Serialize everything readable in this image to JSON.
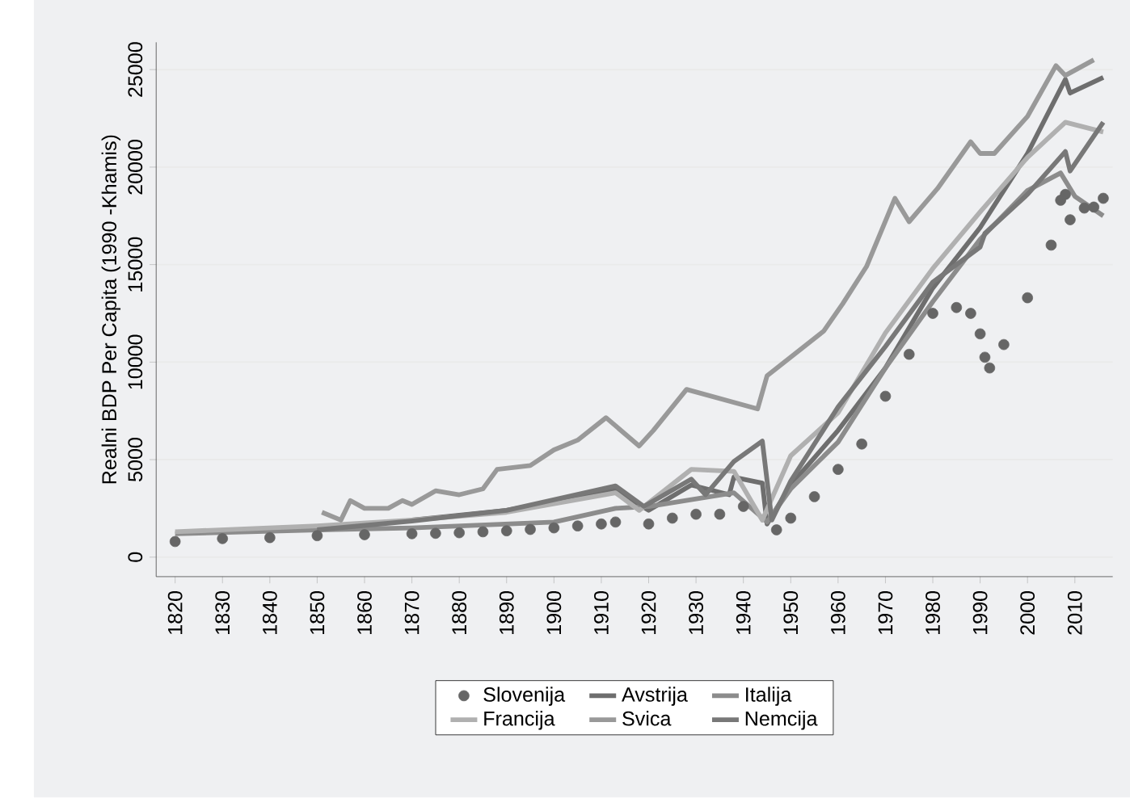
{
  "chart_data": {
    "type": "line",
    "ylabel": "Realni BDP Per Capita (1990 -Khamis)",
    "xlim": [
      1816,
      2018
    ],
    "ylim": [
      -1000,
      26400
    ],
    "xticks": [
      1820,
      1830,
      1840,
      1850,
      1860,
      1870,
      1880,
      1890,
      1900,
      1910,
      1920,
      1930,
      1940,
      1950,
      1960,
      1970,
      1980,
      1990,
      2000,
      2010
    ],
    "yticks": [
      0,
      5000,
      10000,
      15000,
      20000,
      25000
    ],
    "grid": "y",
    "legend": "bottom",
    "series": [
      {
        "name": "Slovenija",
        "type": "scatter",
        "color": "#666666",
        "x": [
          1820,
          1830,
          1840,
          1850,
          1860,
          1870,
          1875,
          1880,
          1885,
          1890,
          1895,
          1900,
          1905,
          1910,
          1913,
          1920,
          1925,
          1930,
          1935,
          1940,
          1947,
          1950,
          1955,
          1960,
          1965,
          1970,
          1975,
          1980,
          1985,
          1988,
          1990,
          1991,
          1992,
          1995,
          2000,
          2005,
          2007,
          2008,
          2009,
          2012,
          2014,
          2016
        ],
        "values": [
          800,
          950,
          1000,
          1100,
          1150,
          1200,
          1220,
          1250,
          1300,
          1350,
          1420,
          1500,
          1600,
          1700,
          1800,
          1700,
          2000,
          2200,
          2200,
          2600,
          1400,
          2000,
          3100,
          4500,
          5800,
          8250,
          10400,
          12500,
          12800,
          12500,
          11450,
          10250,
          9700,
          10900,
          13300,
          16000,
          18300,
          18600,
          17300,
          17900,
          17950,
          18400
        ]
      },
      {
        "name": "Avstrija",
        "color": "#6e6e6e",
        "x": [
          1870,
          1890,
          1913,
          1920,
          1929,
          1937,
          1938,
          1944,
          1945,
          1950,
          1960,
          1970,
          1980,
          1990,
          2000,
          2008,
          2009,
          2016
        ],
        "values": [
          1900,
          2400,
          3450,
          2400,
          3700,
          3200,
          4100,
          3800,
          1700,
          3700,
          6500,
          9700,
          13800,
          16900,
          20700,
          24500,
          23800,
          24600
        ]
      },
      {
        "name": "Italija",
        "color": "#8c8c8c",
        "x": [
          1820,
          1850,
          1870,
          1900,
          1913,
          1920,
          1938,
          1945,
          1950,
          1960,
          1970,
          1980,
          1990,
          2000,
          2007,
          2010,
          2016
        ],
        "values": [
          1200,
          1400,
          1500,
          1800,
          2500,
          2600,
          3300,
          1800,
          3500,
          5900,
          9700,
          13100,
          16300,
          18800,
          19700,
          18500,
          17500
        ]
      },
      {
        "name": "Francija",
        "color": "#b0b0b0",
        "x": [
          1820,
          1850,
          1870,
          1890,
          1913,
          1918,
          1929,
          1938,
          1944,
          1950,
          1960,
          1970,
          1980,
          1990,
          2000,
          2008,
          2016
        ],
        "values": [
          1300,
          1600,
          1900,
          2300,
          3300,
          2400,
          4500,
          4400,
          1900,
          5200,
          7400,
          11500,
          14800,
          17700,
          20500,
          22300,
          21800
        ]
      },
      {
        "name": "Svica",
        "color": "#999999",
        "x": [
          1851,
          1855,
          1857,
          1860,
          1865,
          1868,
          1870,
          1875,
          1880,
          1885,
          1888,
          1895,
          1900,
          1905,
          1911,
          1918,
          1921,
          1928,
          1943,
          1945,
          1957,
          1961,
          1966,
          1972,
          1975,
          1981,
          1988,
          1990,
          1993,
          2000,
          2006,
          2008,
          2014
        ],
        "values": [
          2300,
          1900,
          2900,
          2500,
          2500,
          2900,
          2700,
          3400,
          3200,
          3500,
          4500,
          4700,
          5500,
          6000,
          7150,
          5700,
          6500,
          8600,
          7600,
          9300,
          11600,
          13000,
          14900,
          18400,
          17200,
          18900,
          21300,
          20700,
          20700,
          22600,
          25200,
          24700,
          25500
        ]
      },
      {
        "name": "Nemcija",
        "color": "#787878",
        "x": [
          1850,
          1870,
          1890,
          1913,
          1919,
          1929,
          1932,
          1938,
          1944,
          1946,
          1950,
          1960,
          1970,
          1980,
          1990,
          1991,
          2000,
          2008,
          2009,
          2016
        ],
        "values": [
          1400,
          1850,
          2400,
          3650,
          2600,
          4000,
          3200,
          4900,
          5950,
          1900,
          3900,
          7700,
          10800,
          14100,
          15900,
          16600,
          18600,
          20800,
          19800,
          22300
        ]
      }
    ]
  }
}
